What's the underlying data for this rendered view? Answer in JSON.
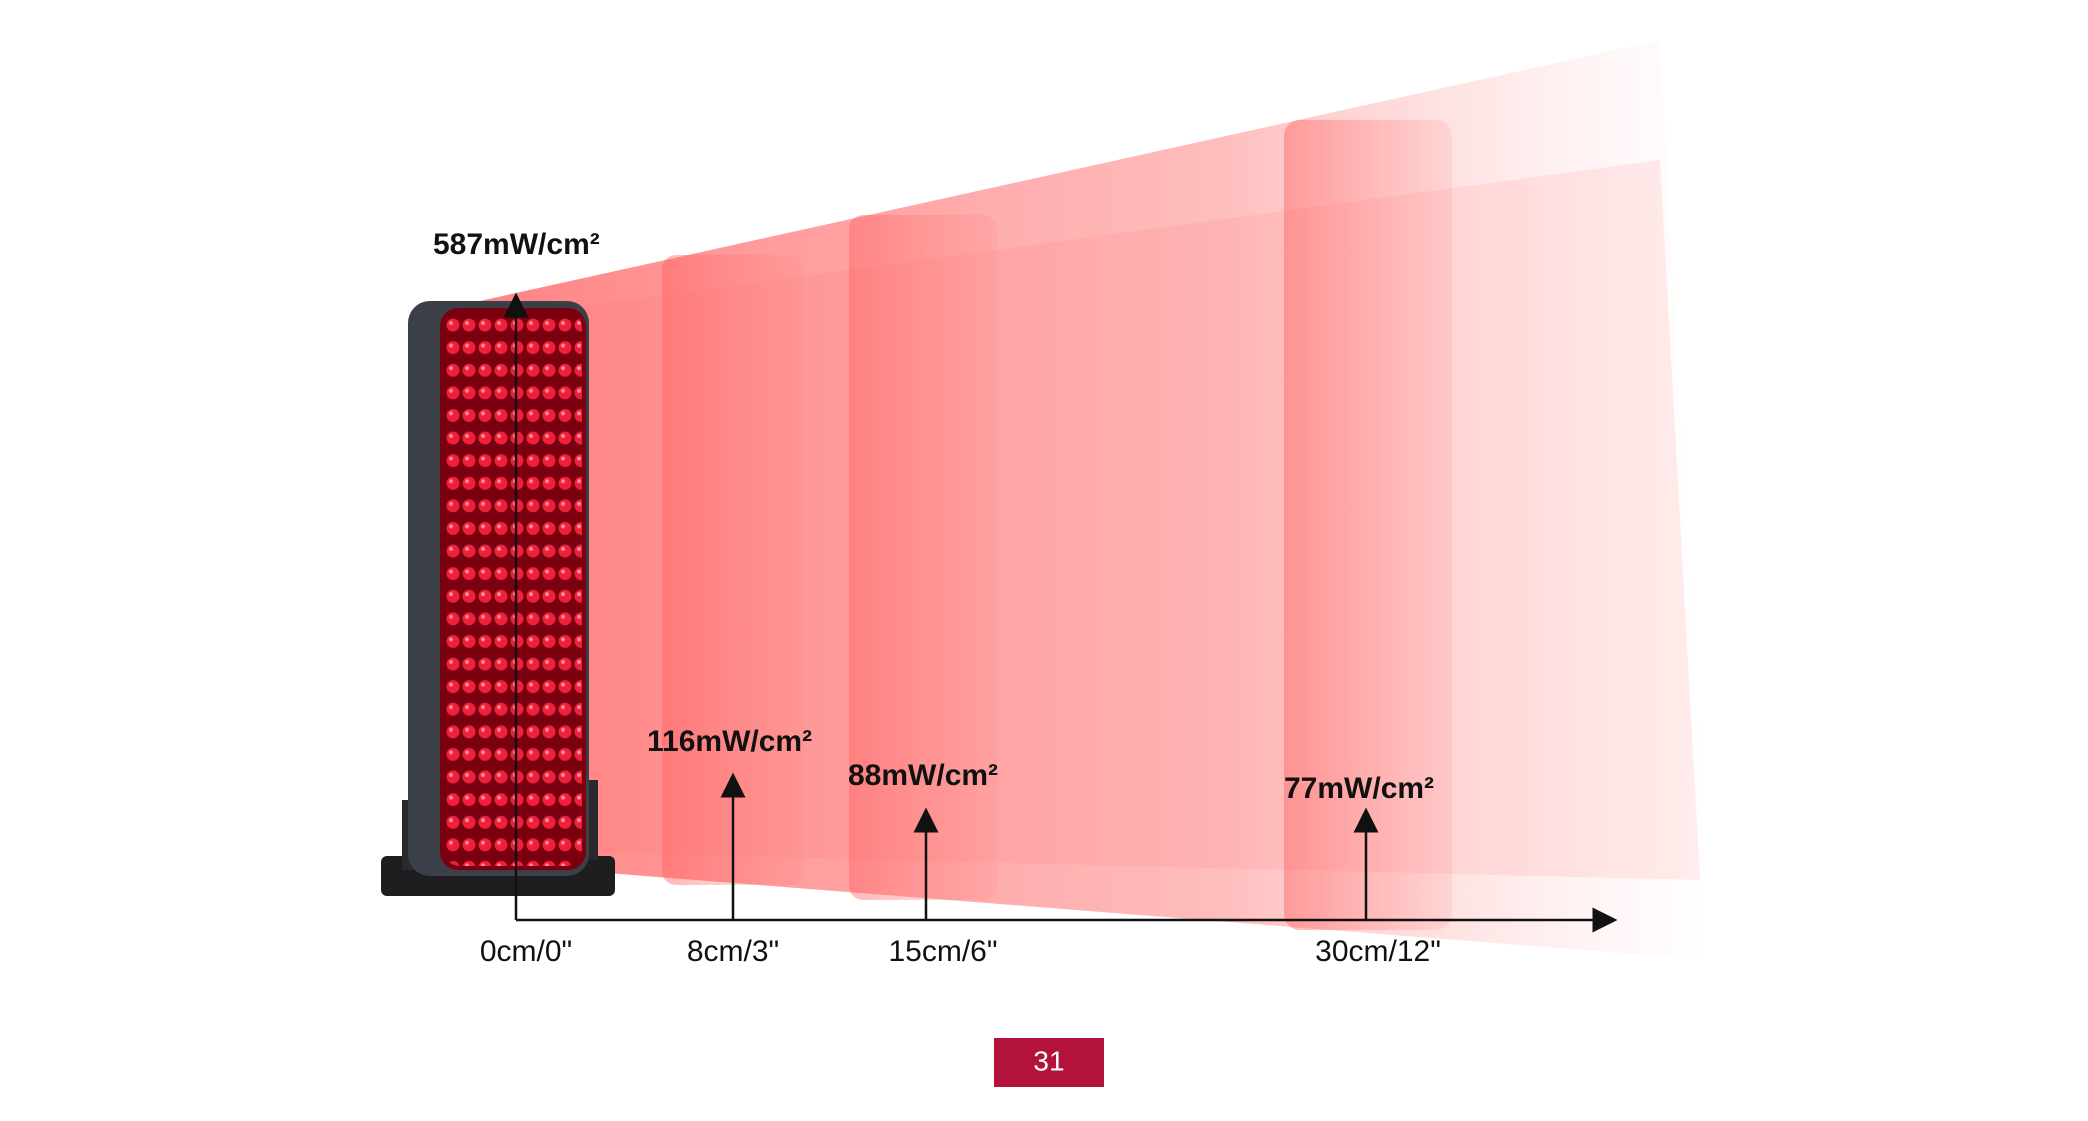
{
  "measurements": [
    {
      "distance": "0cm/0\"",
      "irradiance": "587mW/cm²"
    },
    {
      "distance": "8cm/3\"",
      "irradiance": "116mW/cm²"
    },
    {
      "distance": "15cm/6\"",
      "irradiance": "88mW/cm²"
    },
    {
      "distance": "30cm/12\"",
      "irradiance": "77mW/cm²"
    }
  ],
  "page_number": "31"
}
